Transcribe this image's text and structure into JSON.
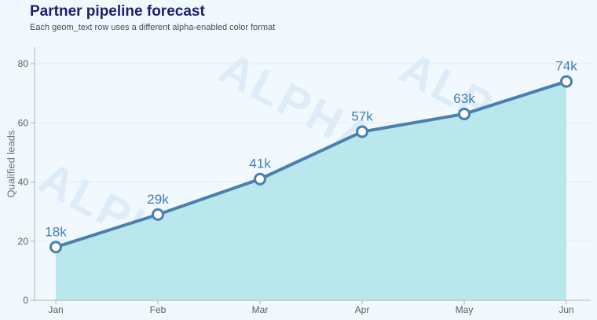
{
  "chart_data": {
    "type": "area",
    "title": "Partner pipeline forecast",
    "subtitle": "Each geom_text row uses a different alpha-enabled color format",
    "xlabel": "",
    "ylabel": "Qualified leads",
    "categories": [
      "Jan",
      "Feb",
      "Mar",
      "Apr",
      "May",
      "Jun"
    ],
    "values": [
      18,
      29,
      41,
      57,
      63,
      74
    ],
    "data_labels": [
      "18k",
      "29k",
      "41k",
      "57k",
      "63k",
      "74k"
    ],
    "ylim": [
      0,
      85
    ],
    "yticks": [
      0,
      20,
      40,
      60,
      80
    ],
    "grid": true,
    "watermark": "ALPHA",
    "colors": {
      "line": "#4a7fb0",
      "fill": "#b6e6ea",
      "label": "#3f7db3",
      "title": "#1b1f6e"
    }
  }
}
